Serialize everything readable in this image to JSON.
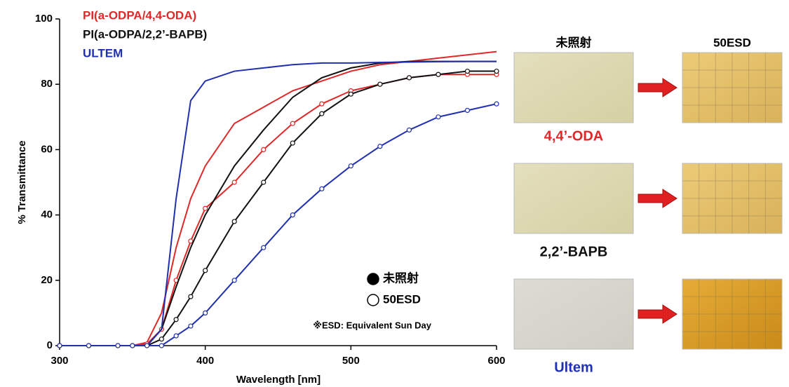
{
  "chart_data": {
    "type": "line",
    "x_label": "Wavelength [nm]",
    "y_label": "% Transmittance",
    "x": [
      300,
      320,
      340,
      350,
      360,
      370,
      380,
      390,
      400,
      420,
      440,
      460,
      480,
      500,
      520,
      540,
      560,
      580,
      600
    ],
    "series": [
      {
        "name": "PI(a-ODPA/4,4-ODA)",
        "color": "#e02828",
        "marker": "filled",
        "values": [
          0,
          0,
          0,
          0,
          1,
          10,
          30,
          45,
          55,
          68,
          73,
          78,
          81,
          84,
          86,
          87,
          88,
          89,
          90
        ]
      },
      {
        "name": "PI(a-ODPA/4,4-ODA)",
        "color": "#e02828",
        "marker": "open",
        "values": [
          0,
          0,
          0,
          0,
          0.5,
          5,
          20,
          32,
          42,
          50,
          60,
          68,
          74,
          78,
          80,
          82,
          83,
          83,
          83
        ]
      },
      {
        "name": "PI(a-ODPA/2,2’-BAPB)",
        "color": "#111111",
        "marker": "filled",
        "values": [
          0,
          0,
          0,
          0,
          0,
          5,
          18,
          30,
          40,
          55,
          66,
          76,
          82,
          85,
          86.5,
          87,
          87,
          87,
          87
        ]
      },
      {
        "name": "PI(a-ODPA/2,2’-BAPB)",
        "color": "#111111",
        "marker": "open",
        "values": [
          0,
          0,
          0,
          0,
          0,
          2,
          8,
          15,
          23,
          38,
          50,
          62,
          71,
          77,
          80,
          82,
          83,
          84,
          84
        ]
      },
      {
        "name": "ULTEM",
        "color": "#2030b0",
        "marker": "filled",
        "values": [
          0,
          0,
          0,
          0,
          0,
          5,
          45,
          75,
          81,
          84,
          85,
          86,
          86.5,
          86.5,
          86.7,
          86.8,
          86.9,
          87,
          87
        ]
      },
      {
        "name": "ULTEM",
        "color": "#2030b0",
        "marker": "open",
        "values": [
          0,
          0,
          0,
          0,
          0,
          0,
          3,
          6,
          10,
          20,
          30,
          40,
          48,
          55,
          61,
          66,
          70,
          72,
          74
        ]
      }
    ],
    "marker_legend": [
      "未照射",
      "50ESD"
    ],
    "annotation": "※ESD: Equivalent Sun Day",
    "xlim": [
      300,
      600
    ],
    "xticks": [
      300,
      400,
      500,
      600
    ],
    "ylim": [
      0,
      100
    ],
    "yticks": [
      0,
      20,
      40,
      60,
      80,
      100
    ]
  },
  "photo_panel": {
    "columns": [
      "未照射",
      "50ESD"
    ],
    "rows": [
      {
        "label": "4,4’-ODA",
        "color": "#e02828"
      },
      {
        "label": "2,2’-BAPB",
        "color": "#111111"
      },
      {
        "label": "Ultem",
        "color": "#2030b0"
      }
    ]
  }
}
